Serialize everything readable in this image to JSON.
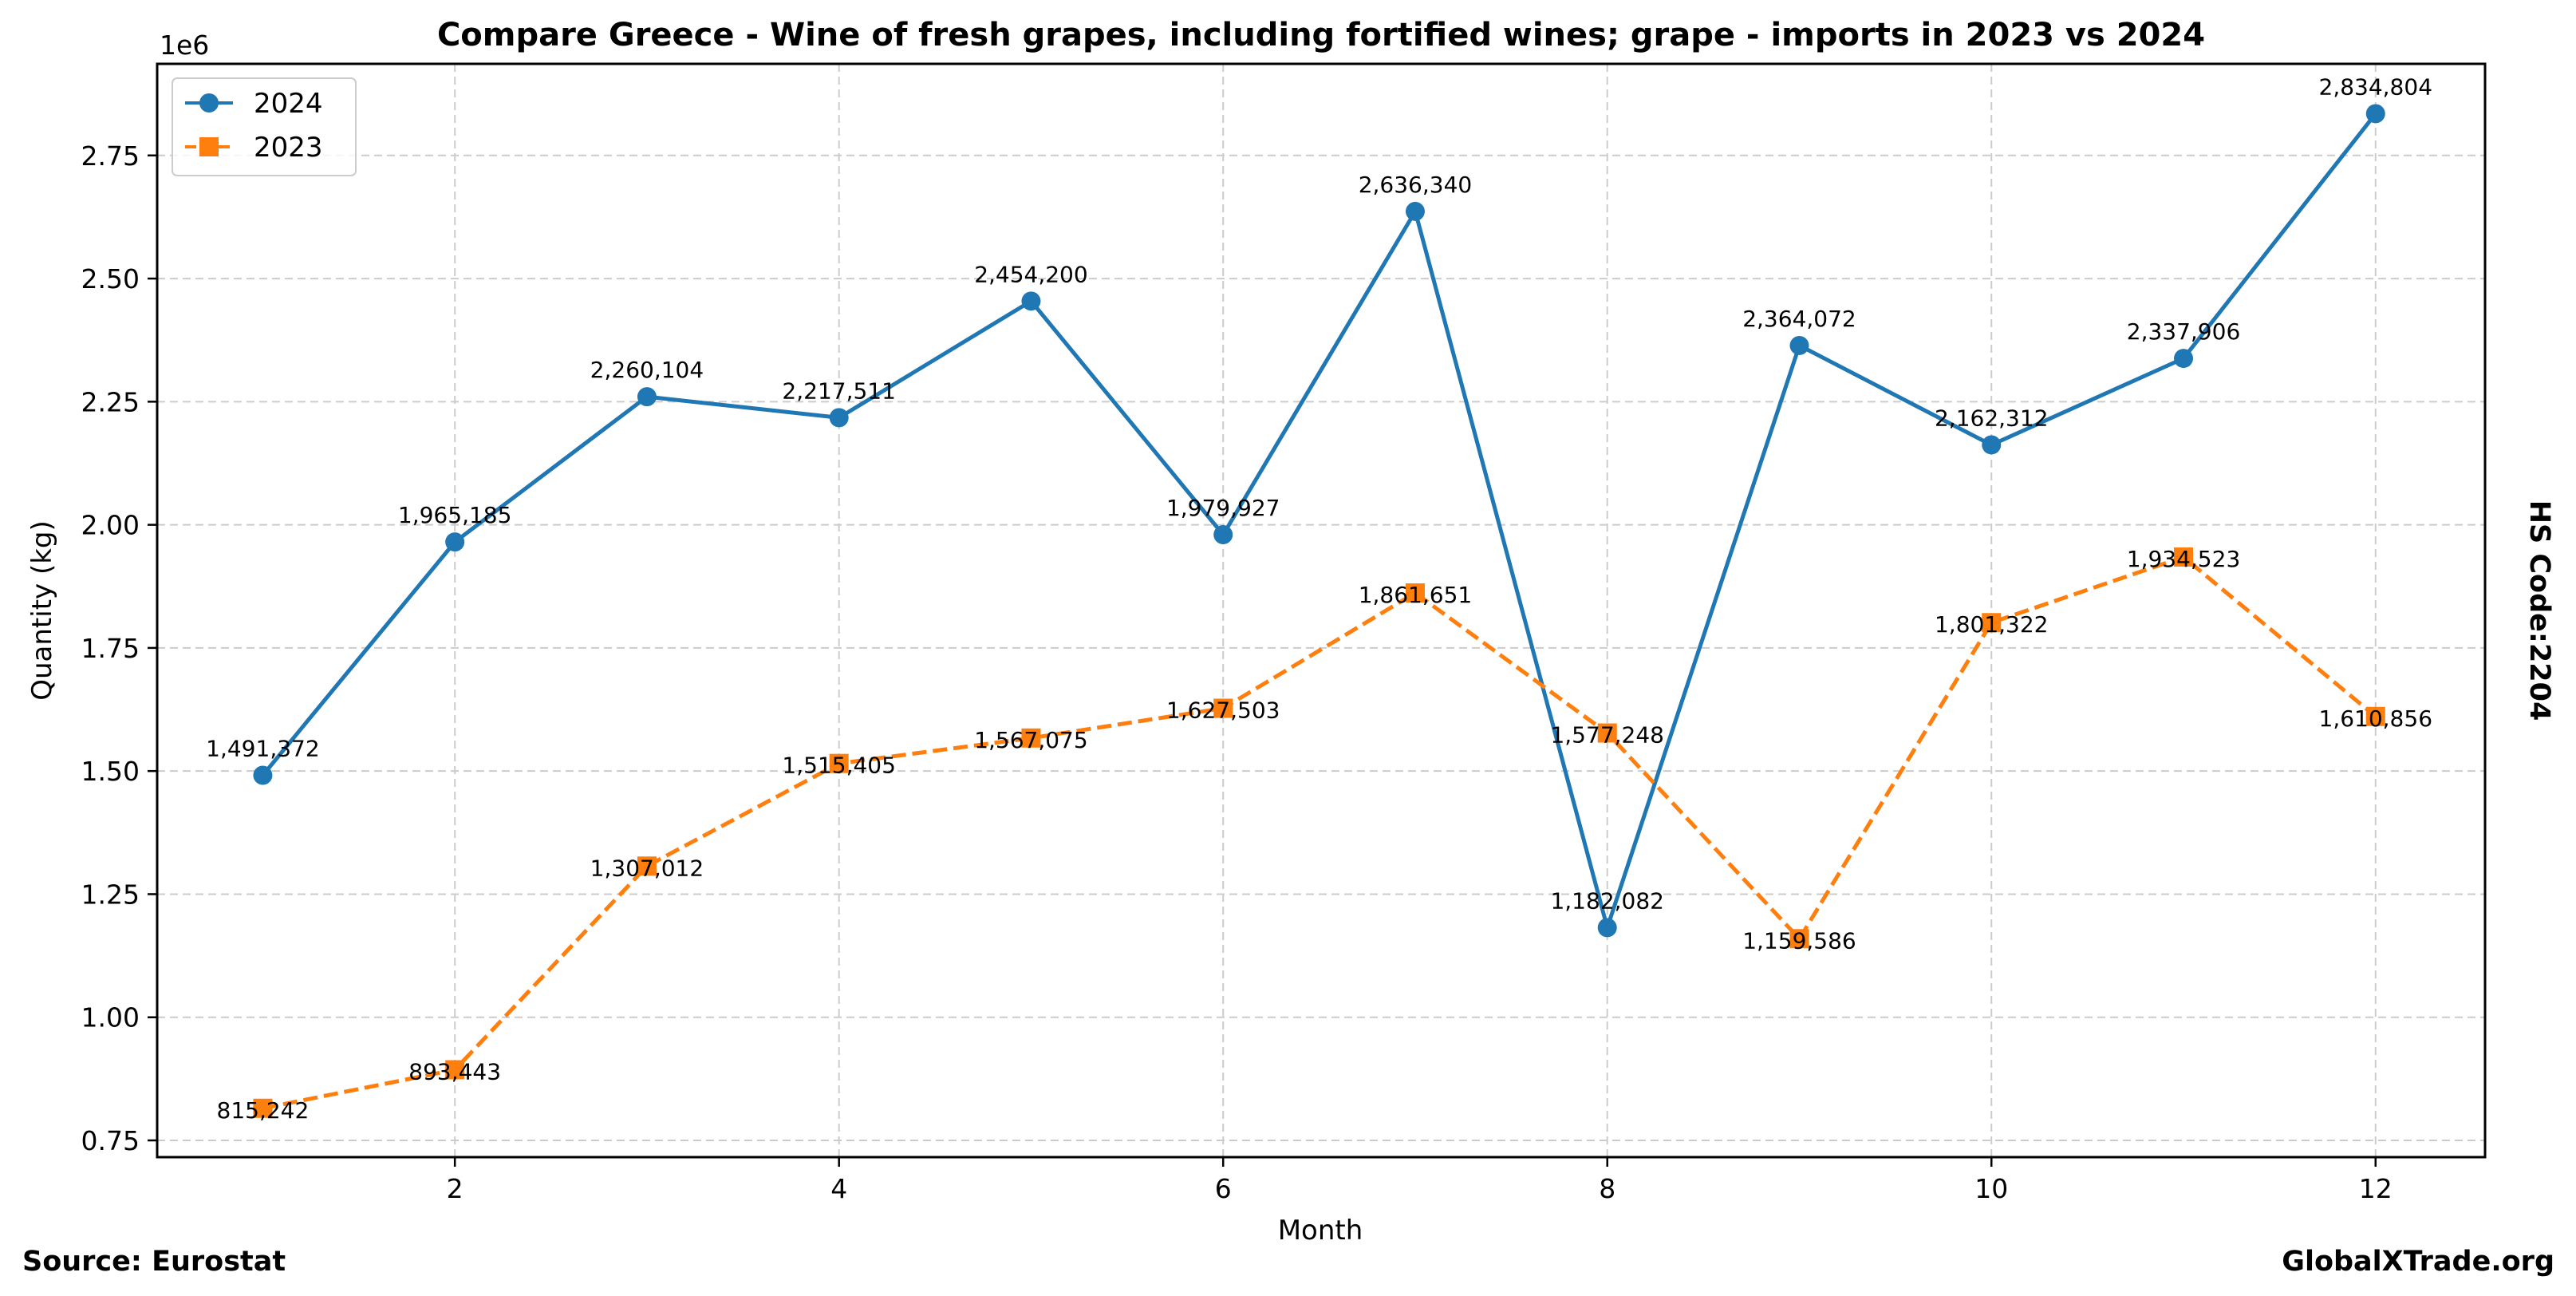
{
  "chart_data": {
    "type": "line",
    "title": "Compare Greece - Wine of fresh grapes, including fortified wines; grape - imports in 2023 vs 2024",
    "xlabel": "Month",
    "ylabel": "Quantity (kg)",
    "y_offset_label": "1e6",
    "right_label": "HS Code:2204",
    "x": [
      1,
      2,
      3,
      4,
      5,
      6,
      7,
      8,
      9,
      10,
      11,
      12
    ],
    "xlim": [
      0.45,
      12.57
    ],
    "ylim": [
      716000,
      2936000
    ],
    "x_ticks": [
      2,
      4,
      6,
      8,
      10,
      12
    ],
    "x_tick_labels": [
      "2",
      "4",
      "6",
      "8",
      "10",
      "12"
    ],
    "y_ticks": [
      750000,
      1000000,
      1250000,
      1500000,
      1750000,
      2000000,
      2250000,
      2500000,
      2750000
    ],
    "y_tick_labels": [
      "0.75",
      "1.00",
      "1.25",
      "1.50",
      "1.75",
      "2.00",
      "2.25",
      "2.50",
      "2.75"
    ],
    "grid": true,
    "legend_position": "top-left",
    "series": [
      {
        "name": "2024",
        "color": "#1f77b4",
        "line_style": "solid",
        "marker": "circle",
        "values": [
          1491372,
          1965185,
          2260104,
          2217511,
          2454200,
          1979927,
          2636340,
          1182082,
          2364072,
          2162312,
          2337906,
          2834804
        ],
        "labels": [
          "1,491,372",
          "1,965,185",
          "2,260,104",
          "2,217,511",
          "2,454,200",
          "1,979,927",
          "2,636,340",
          "1,182,082",
          "2,364,072",
          "2,162,312",
          "2,337,906",
          "2,834,804"
        ]
      },
      {
        "name": "2023",
        "color": "#ff7f0e",
        "line_style": "dashed",
        "marker": "square",
        "values": [
          815242,
          893443,
          1307012,
          1515405,
          1567075,
          1627503,
          1861651,
          1577248,
          1159586,
          1801322,
          1934523,
          1610856
        ],
        "labels": [
          "815,242",
          "893,443",
          "1,307,012",
          "1,515,405",
          "1,567,075",
          "1,627,503",
          "1,861,651",
          "1,577,248",
          "1,159,586",
          "1,801,322",
          "1,934,523",
          "1,610,856"
        ]
      }
    ]
  },
  "footer": {
    "source": "Source: Eurostat",
    "brand": "GlobalXTrade.org"
  }
}
